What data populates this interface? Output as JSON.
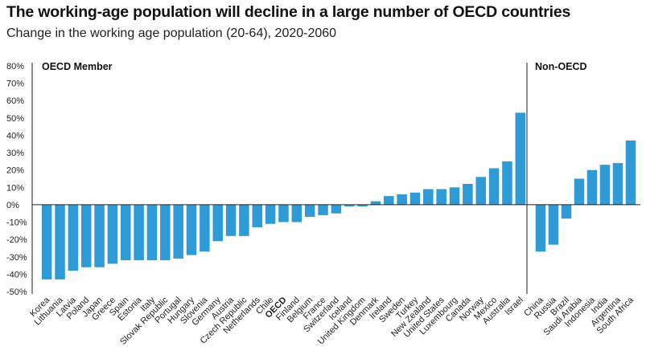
{
  "title": "The working-age population will decline in a large number of OECD countries",
  "subtitle": "Change in the working age population (20-64), 2020-2060",
  "colors": {
    "bar": "#2e9ad6",
    "axis": "#222222",
    "divider": "#222222"
  },
  "chart_data": {
    "type": "bar",
    "ylim": [
      -50,
      80
    ],
    "yticks": [
      80,
      70,
      60,
      50,
      40,
      30,
      20,
      10,
      0,
      -10,
      -20,
      -30,
      -40,
      -50
    ],
    "ytick_labels": [
      "80%",
      "70%",
      "60%",
      "50%",
      "40%",
      "30%",
      "20%",
      "10%",
      "0%",
      "-10%",
      "-20%",
      "-30%",
      "-40%",
      "-50%"
    ],
    "grid": false,
    "panels": [
      {
        "label": "OECD Member",
        "categories": [
          "Korea",
          "Lithuania",
          "Latvia",
          "Poland",
          "Japan",
          "Greece",
          "Spain",
          "Estonia",
          "Italy",
          "Slovak Republic",
          "Portugal",
          "Hungary",
          "Slovenia",
          "Germany",
          "Austria",
          "Czech Republic",
          "Netherlands",
          "Chile",
          "OECD",
          "Finland",
          "Belgium",
          "France",
          "Switzerland",
          "Iceland",
          "United Kingdom",
          "Denmark",
          "Ireland",
          "Sweden",
          "Turkey",
          "New Zealand",
          "United States",
          "Luxembourg",
          "Canada",
          "Norway",
          "Mexico",
          "Australia",
          "Israel"
        ],
        "values": [
          -43,
          -43,
          -38,
          -36,
          -36,
          -34,
          -32,
          -32,
          -32,
          -32,
          -31,
          -29,
          -27,
          -21,
          -18,
          -18,
          -13,
          -11,
          -10,
          -10,
          -7,
          -6,
          -5,
          -1,
          -1,
          2,
          5,
          6,
          7,
          9,
          9,
          10,
          12,
          16,
          21,
          25,
          53
        ],
        "highlight": [
          "OECD"
        ]
      },
      {
        "label": "Non-OECD",
        "categories": [
          "China",
          "Russia",
          "Brazil",
          "Saudi Arabia",
          "Indonesia",
          "India",
          "Argentina",
          "South Africa"
        ],
        "values": [
          -27,
          -23,
          -8,
          15,
          20,
          23,
          24,
          37
        ]
      }
    ]
  }
}
